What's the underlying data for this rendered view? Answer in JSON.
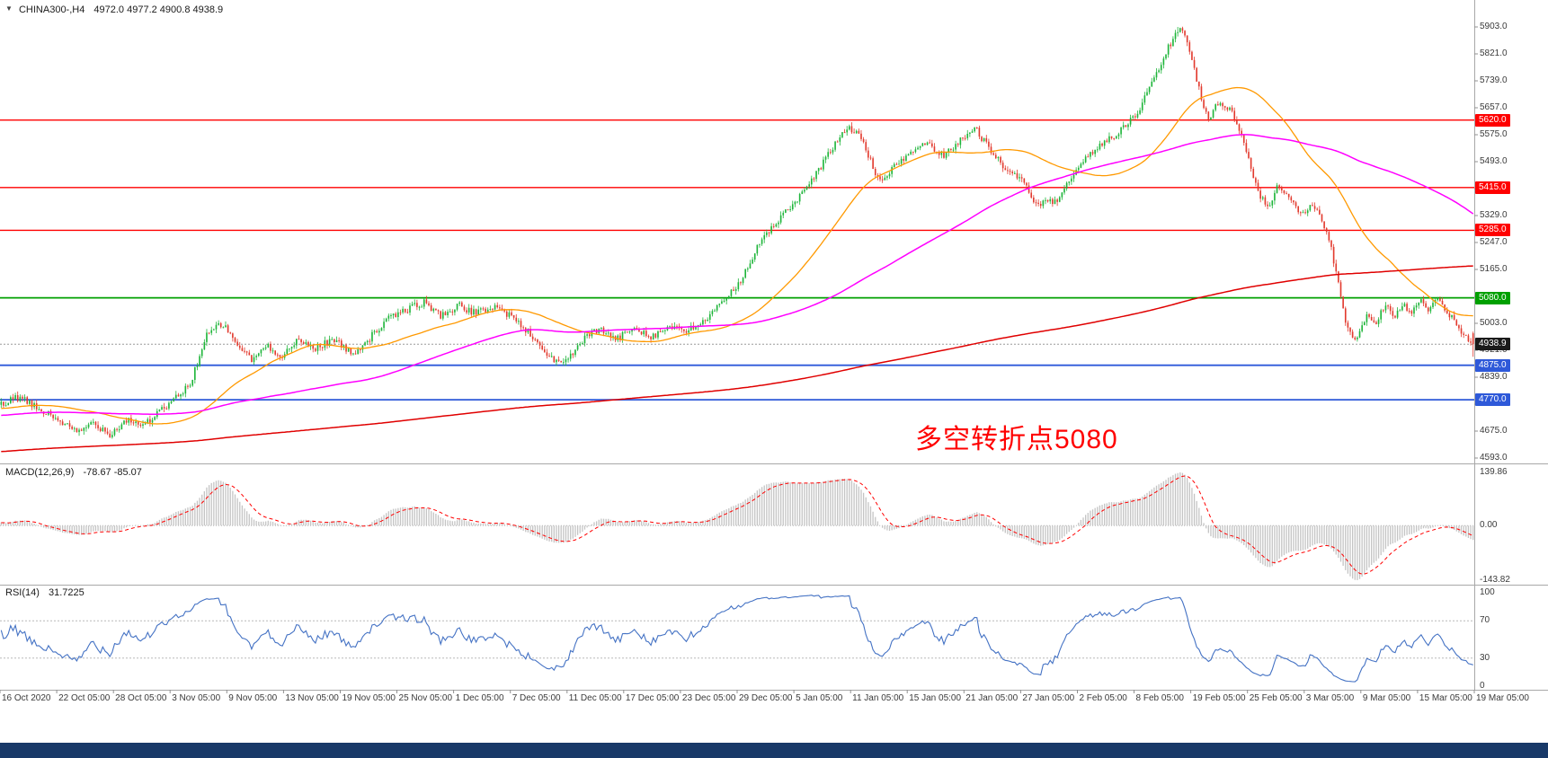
{
  "header": {
    "dropdown_icon": "▼",
    "symbol_period": "CHINA300-,H4",
    "ohlc_text": "4972.0 4977.2 4900.8 4938.9",
    "open": "4972.0",
    "high": "4977.2",
    "low": "4900.8",
    "close": "4938.9"
  },
  "taskbar": {
    "color": "#183968"
  },
  "chart_data": {
    "type": "candlestick",
    "title": "CHINA300-,H4",
    "symbol": "CHINA300-",
    "timeframe": "H4",
    "annotation": {
      "text": "多空转折点5080",
      "color": "#ff0000"
    },
    "ylim": [
      4593.0,
      5903.0
    ],
    "y_ticks": [
      "5903.0",
      "5821.0",
      "5739.0",
      "5657.0",
      "5575.0",
      "5493.0",
      "5411.0",
      "5329.0",
      "5247.0",
      "5165.0",
      "5083.0",
      "5003.0",
      "4921.0",
      "4839.0",
      "4757.0",
      "4675.0",
      "4593.0"
    ],
    "x_labels": [
      "16 Oct 2020",
      "22 Oct 05:00",
      "28 Oct 05:00",
      "3 Nov 05:00",
      "9 Nov 05:00",
      "13 Nov 05:00",
      "19 Nov 05:00",
      "25 Nov 05:00",
      "1 Dec 05:00",
      "7 Dec 05:00",
      "11 Dec 05:00",
      "17 Dec 05:00",
      "23 Dec 05:00",
      "29 Dec 05:00",
      "5 Jan 05:00",
      "11 Jan 05:00",
      "15 Jan 05:00",
      "21 Jan 05:00",
      "27 Jan 05:00",
      "2 Feb 05:00",
      "8 Feb 05:00",
      "19 Feb 05:00",
      "25 Feb 05:00",
      "3 Mar 05:00",
      "9 Mar 05:00",
      "15 Mar 05:00",
      "19 Mar 05:00"
    ],
    "visible_bars": 624,
    "warmup": {
      "bars": 620,
      "start_price": 4460
    },
    "noise": 11,
    "wick": 12,
    "seed": 42,
    "peak": {
      "fraction": 0.8,
      "high": 5903.0
    },
    "last_candle": {
      "open": 4972.0,
      "high": 4977.2,
      "low": 4900.8,
      "close": 4938.9
    },
    "up_color": "#1eb53a",
    "down_color": "#e23a2e",
    "anchors": [
      [
        0.0,
        4755
      ],
      [
        0.012,
        4778
      ],
      [
        0.026,
        4740
      ],
      [
        0.038,
        4712
      ],
      [
        0.052,
        4668
      ],
      [
        0.062,
        4702
      ],
      [
        0.074,
        4666
      ],
      [
        0.086,
        4712
      ],
      [
        0.096,
        4692
      ],
      [
        0.108,
        4734
      ],
      [
        0.118,
        4772
      ],
      [
        0.128,
        4815
      ],
      [
        0.14,
        4968
      ],
      [
        0.15,
        5002
      ],
      [
        0.16,
        4941
      ],
      [
        0.17,
        4890
      ],
      [
        0.18,
        4932
      ],
      [
        0.191,
        4906
      ],
      [
        0.202,
        4950
      ],
      [
        0.214,
        4926
      ],
      [
        0.226,
        4956
      ],
      [
        0.238,
        4908
      ],
      [
        0.25,
        4956
      ],
      [
        0.262,
        5012
      ],
      [
        0.274,
        5042
      ],
      [
        0.287,
        5066
      ],
      [
        0.299,
        5026
      ],
      [
        0.311,
        5056
      ],
      [
        0.323,
        5032
      ],
      [
        0.335,
        5056
      ],
      [
        0.347,
        5022
      ],
      [
        0.359,
        4972
      ],
      [
        0.371,
        4906
      ],
      [
        0.382,
        4876
      ],
      [
        0.394,
        4946
      ],
      [
        0.406,
        4986
      ],
      [
        0.418,
        4952
      ],
      [
        0.43,
        4992
      ],
      [
        0.442,
        4962
      ],
      [
        0.454,
        4992
      ],
      [
        0.466,
        4976
      ],
      [
        0.478,
        5012
      ],
      [
        0.49,
        5062
      ],
      [
        0.502,
        5132
      ],
      [
        0.515,
        5242
      ],
      [
        0.528,
        5318
      ],
      [
        0.54,
        5372
      ],
      [
        0.552,
        5442
      ],
      [
        0.564,
        5532
      ],
      [
        0.576,
        5602
      ],
      [
        0.586,
        5552
      ],
      [
        0.596,
        5432
      ],
      [
        0.606,
        5472
      ],
      [
        0.616,
        5516
      ],
      [
        0.628,
        5552
      ],
      [
        0.64,
        5512
      ],
      [
        0.652,
        5562
      ],
      [
        0.662,
        5592
      ],
      [
        0.672,
        5532
      ],
      [
        0.684,
        5462
      ],
      [
        0.694,
        5432
      ],
      [
        0.704,
        5362
      ],
      [
        0.716,
        5372
      ],
      [
        0.728,
        5442
      ],
      [
        0.74,
        5522
      ],
      [
        0.752,
        5562
      ],
      [
        0.762,
        5592
      ],
      [
        0.772,
        5642
      ],
      [
        0.782,
        5732
      ],
      [
        0.792,
        5832
      ],
      [
        0.8,
        5896
      ],
      [
        0.806,
        5862
      ],
      [
        0.812,
        5742
      ],
      [
        0.82,
        5622
      ],
      [
        0.828,
        5682
      ],
      [
        0.836,
        5642
      ],
      [
        0.844,
        5562
      ],
      [
        0.852,
        5422
      ],
      [
        0.86,
        5352
      ],
      [
        0.868,
        5422
      ],
      [
        0.876,
        5382
      ],
      [
        0.884,
        5332
      ],
      [
        0.89,
        5372
      ],
      [
        0.896,
        5322
      ],
      [
        0.902,
        5262
      ],
      [
        0.908,
        5132
      ],
      [
        0.914,
        4992
      ],
      [
        0.92,
        4952
      ],
      [
        0.928,
        5032
      ],
      [
        0.934,
        5002
      ],
      [
        0.94,
        5062
      ],
      [
        0.946,
        5022
      ],
      [
        0.952,
        5062
      ],
      [
        0.958,
        5032
      ],
      [
        0.964,
        5072
      ],
      [
        0.97,
        5042
      ],
      [
        0.976,
        5072
      ],
      [
        0.982,
        5042
      ],
      [
        0.988,
        5002
      ],
      [
        0.994,
        4962
      ],
      [
        1.0,
        4938.9
      ]
    ],
    "levels": [
      {
        "price": 5620.0,
        "label": "5620.0",
        "color": "#ff0000",
        "width": 1.4
      },
      {
        "price": 5415.0,
        "label": "5415.0",
        "color": "#ff0000",
        "width": 1.4
      },
      {
        "price": 5285.0,
        "label": "5285.0",
        "color": "#ff0000",
        "width": 1.4
      },
      {
        "price": 5080.0,
        "label": "5080.0",
        "color": "#00a000",
        "width": 1.8
      },
      {
        "price": 4875.0,
        "label": "4875.0",
        "color": "#2e59d9",
        "width": 1.8
      },
      {
        "price": 4770.0,
        "label": "4770.0",
        "color": "#2e59d9",
        "width": 1.8
      }
    ],
    "current_price": {
      "value": 4938.9,
      "label": "4938.9",
      "line_color": "#9a9a9a",
      "bg": "#1a1a1a"
    },
    "moving_averages": [
      {
        "name": "fast-ma",
        "period": 50,
        "color": "#ff9900",
        "width": 1.3
      },
      {
        "name": "mid-ma",
        "period": 140,
        "color": "#ff00ff",
        "width": 1.5
      },
      {
        "name": "slow-ma",
        "period": 600,
        "color": "#e00000",
        "width": 1.5
      }
    ],
    "indicators": {
      "macd": {
        "label": "MACD(12,26,9)",
        "values_text": "-78.67 -85.07",
        "fast": 12,
        "slow": 26,
        "signal": 9,
        "ylim": [
          -143.82,
          139.86
        ],
        "y_ticks": [
          "139.86",
          "0.00",
          "-143.82"
        ],
        "histogram_color": "#c4c4c4",
        "signal_color": "#ff0000"
      },
      "rsi": {
        "label": "RSI(14)",
        "value_text": "31.7225",
        "period": 14,
        "levels": [
          70,
          30
        ],
        "ylim": [
          0,
          100
        ],
        "y_ticks": [
          "100",
          "70",
          "30",
          "0"
        ],
        "line_color": "#4472c4"
      }
    },
    "legend_position": "none",
    "grid": false
  }
}
